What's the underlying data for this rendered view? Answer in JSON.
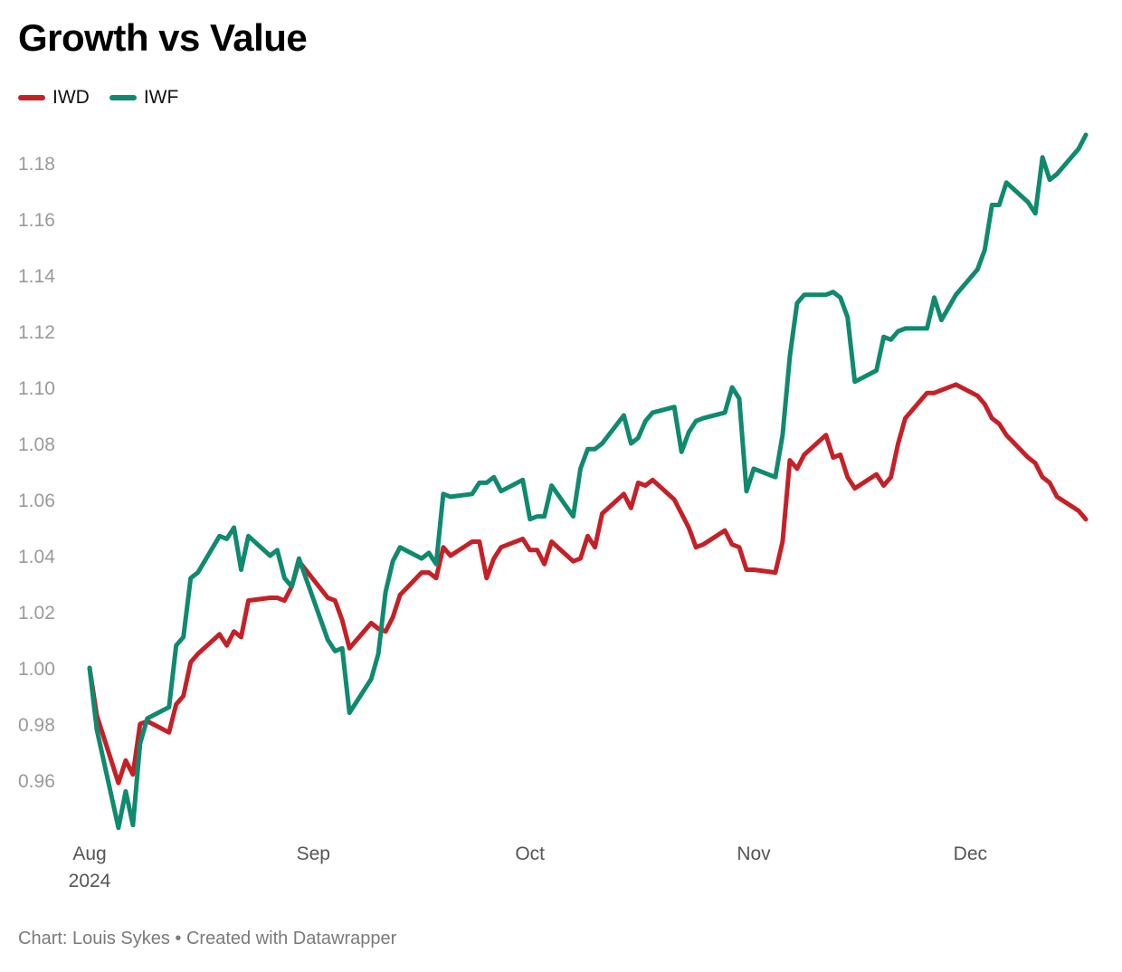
{
  "header": {
    "title": "Growth vs Value"
  },
  "footer": {
    "text": "Chart: Louis Sykes • Created with Datawrapper"
  },
  "chart_data": {
    "type": "line",
    "title": "Growth vs Value",
    "xlabel": "",
    "ylabel": "",
    "ylim": [
      0.945,
      1.195
    ],
    "y_ticks": [
      "0.96",
      "0.98",
      "1.00",
      "1.02",
      "1.04",
      "1.06",
      "1.08",
      "1.10",
      "1.12",
      "1.14",
      "1.16",
      "1.18"
    ],
    "x_ticks": [
      {
        "label": "Aug",
        "sublabel": "2024",
        "date": "2024-08-01"
      },
      {
        "label": "Sep",
        "sublabel": "",
        "date": "2024-09-01"
      },
      {
        "label": "Oct",
        "sublabel": "",
        "date": "2024-10-01"
      },
      {
        "label": "Nov",
        "sublabel": "",
        "date": "2024-11-01"
      },
      {
        "label": "Dec",
        "sublabel": "",
        "date": "2024-12-01"
      }
    ],
    "xlim": [
      "2024-08-01",
      "2024-12-17"
    ],
    "grid": false,
    "legend": "top-left",
    "series": [
      {
        "name": "IWD",
        "color": "#c62027",
        "points": [
          [
            "2024-08-01",
            1.0
          ],
          [
            "2024-08-02",
            0.983
          ],
          [
            "2024-08-05",
            0.959
          ],
          [
            "2024-08-06",
            0.967
          ],
          [
            "2024-08-07",
            0.962
          ],
          [
            "2024-08-08",
            0.98
          ],
          [
            "2024-08-09",
            0.981
          ],
          [
            "2024-08-12",
            0.977
          ],
          [
            "2024-08-13",
            0.987
          ],
          [
            "2024-08-14",
            0.99
          ],
          [
            "2024-08-15",
            1.002
          ],
          [
            "2024-08-16",
            1.005
          ],
          [
            "2024-08-19",
            1.012
          ],
          [
            "2024-08-20",
            1.008
          ],
          [
            "2024-08-21",
            1.013
          ],
          [
            "2024-08-22",
            1.011
          ],
          [
            "2024-08-23",
            1.024
          ],
          [
            "2024-08-26",
            1.025
          ],
          [
            "2024-08-27",
            1.025
          ],
          [
            "2024-08-28",
            1.024
          ],
          [
            "2024-08-29",
            1.029
          ],
          [
            "2024-08-30",
            1.038
          ],
          [
            "2024-09-03",
            1.025
          ],
          [
            "2024-09-04",
            1.024
          ],
          [
            "2024-09-05",
            1.017
          ],
          [
            "2024-09-06",
            1.007
          ],
          [
            "2024-09-09",
            1.016
          ],
          [
            "2024-09-10",
            1.014
          ],
          [
            "2024-09-11",
            1.013
          ],
          [
            "2024-09-12",
            1.018
          ],
          [
            "2024-09-13",
            1.026
          ],
          [
            "2024-09-16",
            1.034
          ],
          [
            "2024-09-17",
            1.034
          ],
          [
            "2024-09-18",
            1.032
          ],
          [
            "2024-09-19",
            1.043
          ],
          [
            "2024-09-20",
            1.04
          ],
          [
            "2024-09-23",
            1.045
          ],
          [
            "2024-09-24",
            1.045
          ],
          [
            "2024-09-25",
            1.032
          ],
          [
            "2024-09-26",
            1.039
          ],
          [
            "2024-09-27",
            1.043
          ],
          [
            "2024-09-30",
            1.046
          ],
          [
            "2024-10-01",
            1.042
          ],
          [
            "2024-10-02",
            1.042
          ],
          [
            "2024-10-03",
            1.037
          ],
          [
            "2024-10-04",
            1.045
          ],
          [
            "2024-10-07",
            1.038
          ],
          [
            "2024-10-08",
            1.039
          ],
          [
            "2024-10-09",
            1.047
          ],
          [
            "2024-10-10",
            1.043
          ],
          [
            "2024-10-11",
            1.055
          ],
          [
            "2024-10-14",
            1.062
          ],
          [
            "2024-10-15",
            1.057
          ],
          [
            "2024-10-16",
            1.066
          ],
          [
            "2024-10-17",
            1.065
          ],
          [
            "2024-10-18",
            1.067
          ],
          [
            "2024-10-21",
            1.06
          ],
          [
            "2024-10-22",
            1.055
          ],
          [
            "2024-10-23",
            1.05
          ],
          [
            "2024-10-24",
            1.043
          ],
          [
            "2024-10-25",
            1.044
          ],
          [
            "2024-10-28",
            1.049
          ],
          [
            "2024-10-29",
            1.044
          ],
          [
            "2024-10-30",
            1.043
          ],
          [
            "2024-10-31",
            1.035
          ],
          [
            "2024-11-01",
            1.035
          ],
          [
            "2024-11-04",
            1.034
          ],
          [
            "2024-11-05",
            1.045
          ],
          [
            "2024-11-06",
            1.074
          ],
          [
            "2024-11-07",
            1.071
          ],
          [
            "2024-11-08",
            1.076
          ],
          [
            "2024-11-11",
            1.083
          ],
          [
            "2024-11-12",
            1.075
          ],
          [
            "2024-11-13",
            1.076
          ],
          [
            "2024-11-14",
            1.068
          ],
          [
            "2024-11-15",
            1.064
          ],
          [
            "2024-11-18",
            1.069
          ],
          [
            "2024-11-19",
            1.065
          ],
          [
            "2024-11-20",
            1.068
          ],
          [
            "2024-11-21",
            1.08
          ],
          [
            "2024-11-22",
            1.089
          ],
          [
            "2024-11-25",
            1.098
          ],
          [
            "2024-11-26",
            1.098
          ],
          [
            "2024-11-27",
            1.099
          ],
          [
            "2024-11-29",
            1.101
          ],
          [
            "2024-12-02",
            1.097
          ],
          [
            "2024-12-03",
            1.094
          ],
          [
            "2024-12-04",
            1.089
          ],
          [
            "2024-12-05",
            1.087
          ],
          [
            "2024-12-06",
            1.083
          ],
          [
            "2024-12-09",
            1.075
          ],
          [
            "2024-12-10",
            1.073
          ],
          [
            "2024-12-11",
            1.068
          ],
          [
            "2024-12-12",
            1.066
          ],
          [
            "2024-12-13",
            1.061
          ],
          [
            "2024-12-16",
            1.056
          ],
          [
            "2024-12-17",
            1.053
          ]
        ]
      },
      {
        "name": "IWF",
        "color": "#0f8a6e",
        "points": [
          [
            "2024-08-01",
            1.0
          ],
          [
            "2024-08-02",
            0.978
          ],
          [
            "2024-08-05",
            0.943
          ],
          [
            "2024-08-06",
            0.956
          ],
          [
            "2024-08-07",
            0.944
          ],
          [
            "2024-08-08",
            0.973
          ],
          [
            "2024-08-09",
            0.982
          ],
          [
            "2024-08-12",
            0.986
          ],
          [
            "2024-08-13",
            1.008
          ],
          [
            "2024-08-14",
            1.011
          ],
          [
            "2024-08-15",
            1.032
          ],
          [
            "2024-08-16",
            1.034
          ],
          [
            "2024-08-19",
            1.047
          ],
          [
            "2024-08-20",
            1.046
          ],
          [
            "2024-08-21",
            1.05
          ],
          [
            "2024-08-22",
            1.035
          ],
          [
            "2024-08-23",
            1.047
          ],
          [
            "2024-08-26",
            1.04
          ],
          [
            "2024-08-27",
            1.042
          ],
          [
            "2024-08-28",
            1.032
          ],
          [
            "2024-08-29",
            1.029
          ],
          [
            "2024-08-30",
            1.039
          ],
          [
            "2024-09-03",
            1.01
          ],
          [
            "2024-09-04",
            1.006
          ],
          [
            "2024-09-05",
            1.007
          ],
          [
            "2024-09-06",
            0.984
          ],
          [
            "2024-09-09",
            0.996
          ],
          [
            "2024-09-10",
            1.005
          ],
          [
            "2024-09-11",
            1.027
          ],
          [
            "2024-09-12",
            1.038
          ],
          [
            "2024-09-13",
            1.043
          ],
          [
            "2024-09-16",
            1.039
          ],
          [
            "2024-09-17",
            1.041
          ],
          [
            "2024-09-18",
            1.037
          ],
          [
            "2024-09-19",
            1.062
          ],
          [
            "2024-09-20",
            1.061
          ],
          [
            "2024-09-23",
            1.062
          ],
          [
            "2024-09-24",
            1.066
          ],
          [
            "2024-09-25",
            1.066
          ],
          [
            "2024-09-26",
            1.068
          ],
          [
            "2024-09-27",
            1.063
          ],
          [
            "2024-09-30",
            1.067
          ],
          [
            "2024-10-01",
            1.053
          ],
          [
            "2024-10-02",
            1.054
          ],
          [
            "2024-10-03",
            1.054
          ],
          [
            "2024-10-04",
            1.065
          ],
          [
            "2024-10-07",
            1.054
          ],
          [
            "2024-10-08",
            1.071
          ],
          [
            "2024-10-09",
            1.078
          ],
          [
            "2024-10-10",
            1.078
          ],
          [
            "2024-10-11",
            1.08
          ],
          [
            "2024-10-14",
            1.09
          ],
          [
            "2024-10-15",
            1.08
          ],
          [
            "2024-10-16",
            1.082
          ],
          [
            "2024-10-17",
            1.088
          ],
          [
            "2024-10-18",
            1.091
          ],
          [
            "2024-10-21",
            1.093
          ],
          [
            "2024-10-22",
            1.077
          ],
          [
            "2024-10-23",
            1.084
          ],
          [
            "2024-10-24",
            1.088
          ],
          [
            "2024-10-25",
            1.089
          ],
          [
            "2024-10-28",
            1.091
          ],
          [
            "2024-10-29",
            1.1
          ],
          [
            "2024-10-30",
            1.096
          ],
          [
            "2024-10-31",
            1.063
          ],
          [
            "2024-11-01",
            1.071
          ],
          [
            "2024-11-04",
            1.068
          ],
          [
            "2024-11-05",
            1.083
          ],
          [
            "2024-11-06",
            1.111
          ],
          [
            "2024-11-07",
            1.13
          ],
          [
            "2024-11-08",
            1.133
          ],
          [
            "2024-11-11",
            1.133
          ],
          [
            "2024-11-12",
            1.134
          ],
          [
            "2024-11-13",
            1.132
          ],
          [
            "2024-11-14",
            1.125
          ],
          [
            "2024-11-15",
            1.102
          ],
          [
            "2024-11-18",
            1.106
          ],
          [
            "2024-11-19",
            1.118
          ],
          [
            "2024-11-20",
            1.117
          ],
          [
            "2024-11-21",
            1.12
          ],
          [
            "2024-11-22",
            1.121
          ],
          [
            "2024-11-25",
            1.121
          ],
          [
            "2024-11-26",
            1.132
          ],
          [
            "2024-11-27",
            1.124
          ],
          [
            "2024-11-29",
            1.133
          ],
          [
            "2024-12-02",
            1.142
          ],
          [
            "2024-12-03",
            1.149
          ],
          [
            "2024-12-04",
            1.165
          ],
          [
            "2024-12-05",
            1.165
          ],
          [
            "2024-12-06",
            1.173
          ],
          [
            "2024-12-09",
            1.166
          ],
          [
            "2024-12-10",
            1.162
          ],
          [
            "2024-12-11",
            1.182
          ],
          [
            "2024-12-12",
            1.174
          ],
          [
            "2024-12-13",
            1.176
          ],
          [
            "2024-12-16",
            1.185
          ],
          [
            "2024-12-17",
            1.19
          ]
        ]
      }
    ]
  }
}
